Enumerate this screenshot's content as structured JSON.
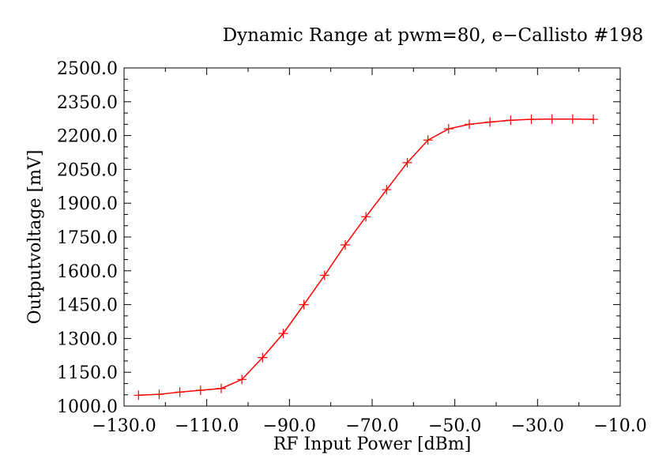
{
  "chart_data": {
    "type": "line",
    "title": "Dynamic Range at pwm=80, e−Callisto #198",
    "xlabel": "RF Input Power [dBm]",
    "ylabel": "Outputvoltage [mV]",
    "xlim": [
      -130,
      -10
    ],
    "ylim": [
      1000,
      2500
    ],
    "x_ticks": [
      -130,
      -110,
      -90,
      -70,
      -50,
      -30,
      -10
    ],
    "x_tick_labels": [
      "−130.0",
      "−110.0",
      "−90.0",
      "−70.0",
      "−50.0",
      "−30.0",
      "−10.0"
    ],
    "y_ticks": [
      1000,
      1150,
      1300,
      1450,
      1600,
      1750,
      1900,
      2050,
      2200,
      2350,
      2500
    ],
    "y_tick_labels": [
      "1000.0",
      "1150.0",
      "1300.0",
      "1450.0",
      "1600.0",
      "1750.0",
      "1900.0",
      "2050.0",
      "2200.0",
      "2350.0",
      "2500.0"
    ],
    "grid": false,
    "series": [
      {
        "marker": "plus",
        "color": "#ff0000",
        "x": [
          -126.5,
          -121.5,
          -116.5,
          -111.5,
          -106.5,
          -101.5,
          -96.5,
          -91.5,
          -86.5,
          -81.5,
          -76.5,
          -71.5,
          -66.5,
          -61.5,
          -56.5,
          -51.5,
          -46.5,
          -41.5,
          -36.5,
          -31.5,
          -26.5,
          -21.5,
          -16.5
        ],
        "y": [
          1048,
          1052,
          1062,
          1070,
          1078,
          1118,
          1215,
          1322,
          1450,
          1580,
          1715,
          1840,
          1960,
          2080,
          2180,
          2230,
          2250,
          2260,
          2268,
          2272,
          2273,
          2273,
          2272
        ]
      }
    ]
  }
}
